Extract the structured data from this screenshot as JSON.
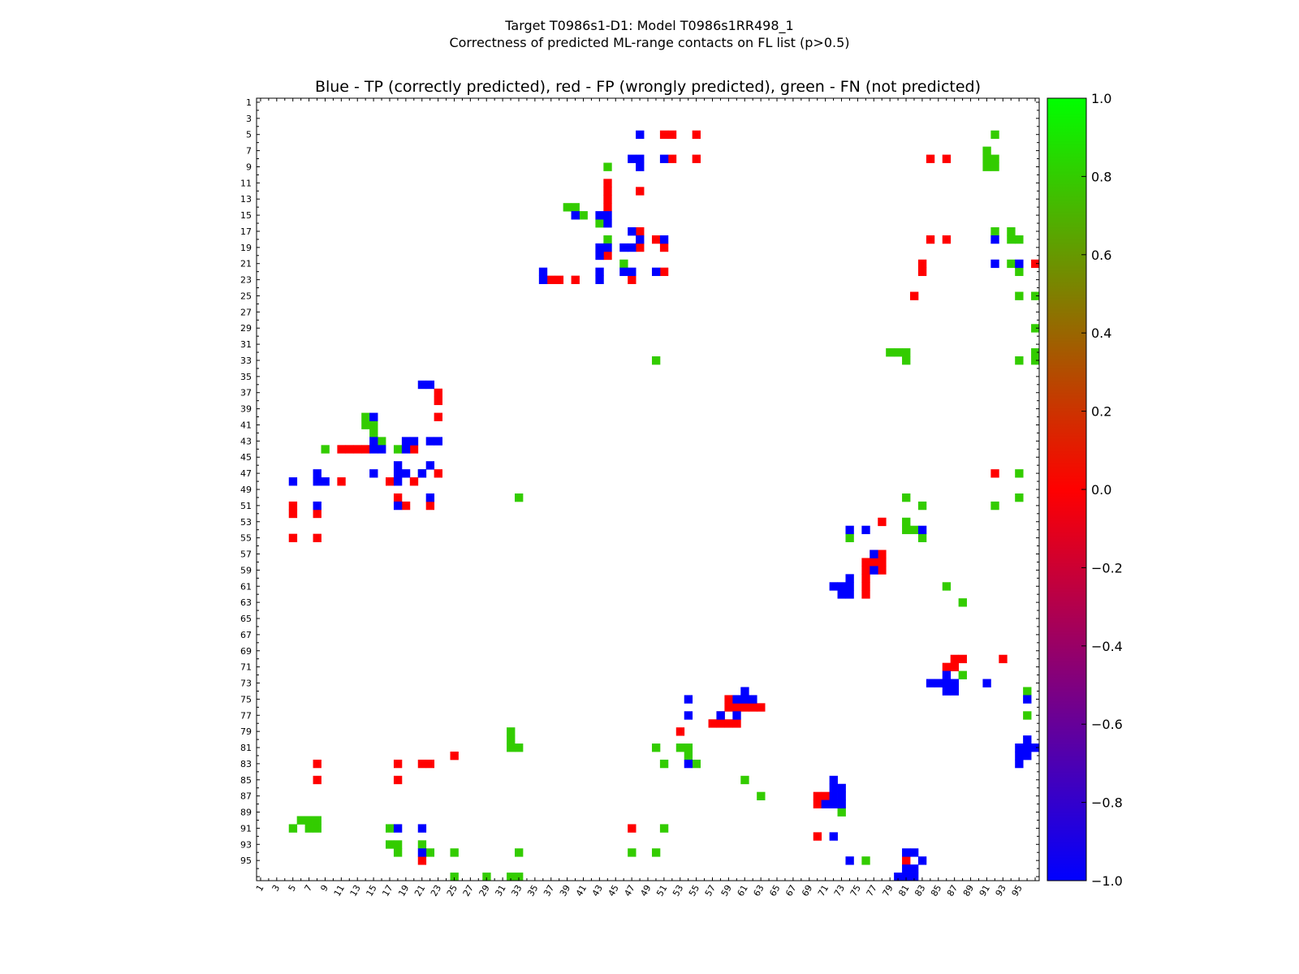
{
  "chart_data": {
    "type": "heatmap",
    "suptitle_line1": "Target T0986s1-D1: Model T0986s1RR498_1",
    "suptitle_line2": "Correctness of predicted ML-range contacts on FL list (p>0.5)",
    "title": "Blue - TP (correctly predicted), red - FP (wrongly predicted), green - FN (not predicted)",
    "xlabel": "",
    "ylabel": "",
    "residue_range": [
      1,
      97
    ],
    "x_tick_labels": [
      "1",
      "3",
      "5",
      "7",
      "9",
      "11",
      "13",
      "15",
      "17",
      "19",
      "21",
      "23",
      "25",
      "27",
      "29",
      "31",
      "33",
      "35",
      "37",
      "39",
      "41",
      "43",
      "45",
      "47",
      "49",
      "51",
      "53",
      "55",
      "57",
      "59",
      "61",
      "63",
      "65",
      "67",
      "69",
      "71",
      "73",
      "75",
      "77",
      "79",
      "81",
      "83",
      "85",
      "87",
      "89",
      "91",
      "93",
      "95"
    ],
    "y_tick_labels": [
      "1",
      "3",
      "5",
      "7",
      "9",
      "11",
      "13",
      "15",
      "17",
      "19",
      "21",
      "23",
      "25",
      "27",
      "29",
      "31",
      "33",
      "35",
      "37",
      "39",
      "41",
      "43",
      "45",
      "47",
      "49",
      "51",
      "53",
      "55",
      "57",
      "59",
      "61",
      "63",
      "65",
      "67",
      "69",
      "71",
      "73",
      "75",
      "77",
      "79",
      "81",
      "83",
      "85",
      "87",
      "89",
      "91",
      "93",
      "95"
    ],
    "colorbar": {
      "range": [
        -1.0,
        1.0
      ],
      "tick_labels": [
        "1.0",
        "0.8",
        "0.6",
        "0.4",
        "0.2",
        "0.0",
        "−0.2",
        "−0.4",
        "−0.6",
        "−0.8",
        "−1.0"
      ],
      "colors": {
        "tp": "#0000ff",
        "fp": "#ff0000",
        "fn": "#33cc00",
        "top": "#00ff00"
      }
    },
    "legend": {
      "tp": "Blue - TP (correctly predicted)",
      "fp": "red - FP (wrongly predicted)",
      "fn": "green - FN (not predicted)"
    },
    "cells": {
      "tp": [
        [
          48,
          5
        ],
        [
          47,
          8
        ],
        [
          48,
          8
        ],
        [
          51,
          8
        ],
        [
          48,
          9
        ],
        [
          40,
          15
        ],
        [
          43,
          15
        ],
        [
          44,
          15
        ],
        [
          44,
          16
        ],
        [
          47,
          17
        ],
        [
          48,
          18
        ],
        [
          43,
          19
        ],
        [
          44,
          19
        ],
        [
          46,
          19
        ],
        [
          47,
          19
        ],
        [
          51,
          18
        ],
        [
          43,
          20
        ],
        [
          36,
          22
        ],
        [
          43,
          22
        ],
        [
          46,
          22
        ],
        [
          47,
          22
        ],
        [
          50,
          22
        ],
        [
          36,
          23
        ],
        [
          43,
          23
        ],
        [
          92,
          18
        ],
        [
          92,
          21
        ],
        [
          95,
          21
        ],
        [
          21,
          36
        ],
        [
          22,
          36
        ],
        [
          15,
          40
        ],
        [
          15,
          43
        ],
        [
          19,
          43
        ],
        [
          20,
          43
        ],
        [
          22,
          43
        ],
        [
          23,
          43
        ],
        [
          15,
          44
        ],
        [
          16,
          44
        ],
        [
          19,
          44
        ],
        [
          22,
          46
        ],
        [
          18,
          46
        ],
        [
          15,
          47
        ],
        [
          18,
          47
        ],
        [
          19,
          47
        ],
        [
          21,
          47
        ],
        [
          5,
          48
        ],
        [
          8,
          48
        ],
        [
          9,
          48
        ],
        [
          8,
          47
        ],
        [
          18,
          48
        ],
        [
          22,
          50
        ],
        [
          18,
          51
        ],
        [
          8,
          51
        ],
        [
          74,
          54
        ],
        [
          76,
          54
        ],
        [
          83,
          54
        ],
        [
          77,
          57
        ],
        [
          77,
          59
        ],
        [
          74,
          60
        ],
        [
          73,
          61
        ],
        [
          72,
          61
        ],
        [
          74,
          61
        ],
        [
          73,
          62
        ],
        [
          74,
          62
        ],
        [
          86,
          72
        ],
        [
          84,
          73
        ],
        [
          85,
          73
        ],
        [
          86,
          73
        ],
        [
          87,
          73
        ],
        [
          86,
          74
        ],
        [
          87,
          74
        ],
        [
          91,
          73
        ],
        [
          61,
          74
        ],
        [
          61,
          75
        ],
        [
          62,
          75
        ],
        [
          60,
          75
        ],
        [
          54,
          75
        ],
        [
          96,
          75
        ],
        [
          54,
          77
        ],
        [
          58,
          77
        ],
        [
          60,
          77
        ],
        [
          96,
          80
        ],
        [
          95,
          81
        ],
        [
          96,
          81
        ],
        [
          97,
          81
        ],
        [
          95,
          82
        ],
        [
          96,
          82
        ],
        [
          95,
          83
        ],
        [
          54,
          83
        ],
        [
          72,
          85
        ],
        [
          72,
          86
        ],
        [
          73,
          86
        ],
        [
          72,
          87
        ],
        [
          73,
          87
        ],
        [
          71,
          88
        ],
        [
          72,
          88
        ],
        [
          73,
          88
        ],
        [
          18,
          91
        ],
        [
          21,
          91
        ],
        [
          21,
          94
        ],
        [
          72,
          92
        ],
        [
          81,
          94
        ],
        [
          82,
          94
        ],
        [
          83,
          95
        ],
        [
          81,
          96
        ],
        [
          82,
          96
        ],
        [
          74,
          95
        ],
        [
          80,
          97
        ],
        [
          81,
          97
        ],
        [
          82,
          97
        ]
      ],
      "fp": [
        [
          51,
          5
        ],
        [
          52,
          5
        ],
        [
          55,
          5
        ],
        [
          52,
          8
        ],
        [
          55,
          8
        ],
        [
          84,
          8
        ],
        [
          86,
          8
        ],
        [
          44,
          11
        ],
        [
          44,
          12
        ],
        [
          44,
          13
        ],
        [
          48,
          12
        ],
        [
          44,
          14
        ],
        [
          48,
          17
        ],
        [
          50,
          18
        ],
        [
          84,
          18
        ],
        [
          86,
          18
        ],
        [
          48,
          19
        ],
        [
          51,
          19
        ],
        [
          44,
          20
        ],
        [
          83,
          21
        ],
        [
          83,
          22
        ],
        [
          51,
          22
        ],
        [
          37,
          23
        ],
        [
          38,
          23
        ],
        [
          40,
          23
        ],
        [
          47,
          23
        ],
        [
          97,
          21
        ],
        [
          82,
          25
        ],
        [
          23,
          37
        ],
        [
          23,
          38
        ],
        [
          23,
          40
        ],
        [
          11,
          44
        ],
        [
          12,
          44
        ],
        [
          13,
          44
        ],
        [
          14,
          44
        ],
        [
          20,
          44
        ],
        [
          23,
          47
        ],
        [
          17,
          48
        ],
        [
          20,
          48
        ],
        [
          11,
          48
        ],
        [
          92,
          47
        ],
        [
          18,
          50
        ],
        [
          19,
          51
        ],
        [
          22,
          51
        ],
        [
          5,
          51
        ],
        [
          5,
          52
        ],
        [
          8,
          52
        ],
        [
          5,
          55
        ],
        [
          8,
          55
        ],
        [
          78,
          53
        ],
        [
          77,
          57
        ],
        [
          78,
          57
        ],
        [
          76,
          58
        ],
        [
          77,
          58
        ],
        [
          78,
          58
        ],
        [
          76,
          59
        ],
        [
          78,
          59
        ],
        [
          76,
          60
        ],
        [
          76,
          61
        ],
        [
          76,
          62
        ],
        [
          87,
          70
        ],
        [
          88,
          70
        ],
        [
          86,
          71
        ],
        [
          87,
          71
        ],
        [
          93,
          70
        ],
        [
          59,
          75
        ],
        [
          59,
          76
        ],
        [
          60,
          76
        ],
        [
          61,
          76
        ],
        [
          62,
          76
        ],
        [
          63,
          76
        ],
        [
          58,
          77
        ],
        [
          57,
          78
        ],
        [
          58,
          78
        ],
        [
          59,
          78
        ],
        [
          60,
          78
        ],
        [
          53,
          79
        ],
        [
          25,
          82
        ],
        [
          96,
          81
        ],
        [
          8,
          83
        ],
        [
          18,
          83
        ],
        [
          21,
          83
        ],
        [
          22,
          83
        ],
        [
          8,
          85
        ],
        [
          18,
          85
        ],
        [
          70,
          87
        ],
        [
          71,
          87
        ],
        [
          70,
          88
        ],
        [
          47,
          91
        ],
        [
          70,
          92
        ],
        [
          21,
          95
        ],
        [
          81,
          95
        ]
      ],
      "fn": [
        [
          92,
          5
        ],
        [
          91,
          7
        ],
        [
          91,
          8
        ],
        [
          92,
          8
        ],
        [
          91,
          9
        ],
        [
          92,
          9
        ],
        [
          44,
          9
        ],
        [
          39,
          14
        ],
        [
          40,
          14
        ],
        [
          40,
          15
        ],
        [
          41,
          15
        ],
        [
          43,
          16
        ],
        [
          92,
          17
        ],
        [
          94,
          17
        ],
        [
          44,
          18
        ],
        [
          94,
          18
        ],
        [
          95,
          18
        ],
        [
          46,
          21
        ],
        [
          94,
          21
        ],
        [
          95,
          22
        ],
        [
          95,
          25
        ],
        [
          97,
          25
        ],
        [
          97,
          29
        ],
        [
          79,
          32
        ],
        [
          80,
          32
        ],
        [
          81,
          32
        ],
        [
          81,
          33
        ],
        [
          50,
          33
        ],
        [
          95,
          33
        ],
        [
          97,
          32
        ],
        [
          97,
          33
        ],
        [
          14,
          40
        ],
        [
          14,
          41
        ],
        [
          15,
          41
        ],
        [
          15,
          42
        ],
        [
          16,
          43
        ],
        [
          18,
          44
        ],
        [
          9,
          44
        ],
        [
          21,
          47
        ],
        [
          95,
          47
        ],
        [
          33,
          50
        ],
        [
          81,
          50
        ],
        [
          83,
          51
        ],
        [
          92,
          51
        ],
        [
          95,
          50
        ],
        [
          81,
          53
        ],
        [
          81,
          54
        ],
        [
          82,
          54
        ],
        [
          83,
          55
        ],
        [
          74,
          55
        ],
        [
          86,
          61
        ],
        [
          88,
          63
        ],
        [
          88,
          72
        ],
        [
          96,
          74
        ],
        [
          96,
          77
        ],
        [
          32,
          79
        ],
        [
          32,
          80
        ],
        [
          32,
          81
        ],
        [
          33,
          81
        ],
        [
          50,
          81
        ],
        [
          53,
          81
        ],
        [
          54,
          81
        ],
        [
          54,
          82
        ],
        [
          51,
          83
        ],
        [
          55,
          83
        ],
        [
          61,
          85
        ],
        [
          63,
          87
        ],
        [
          73,
          89
        ],
        [
          6,
          90
        ],
        [
          7,
          90
        ],
        [
          8,
          90
        ],
        [
          7,
          91
        ],
        [
          8,
          91
        ],
        [
          5,
          91
        ],
        [
          17,
          91
        ],
        [
          51,
          91
        ],
        [
          17,
          93
        ],
        [
          18,
          93
        ],
        [
          21,
          93
        ],
        [
          18,
          94
        ],
        [
          22,
          94
        ],
        [
          25,
          94
        ],
        [
          33,
          94
        ],
        [
          47,
          94
        ],
        [
          50,
          94
        ],
        [
          76,
          95
        ],
        [
          25,
          97
        ],
        [
          29,
          97
        ],
        [
          32,
          97
        ],
        [
          33,
          97
        ]
      ]
    }
  }
}
